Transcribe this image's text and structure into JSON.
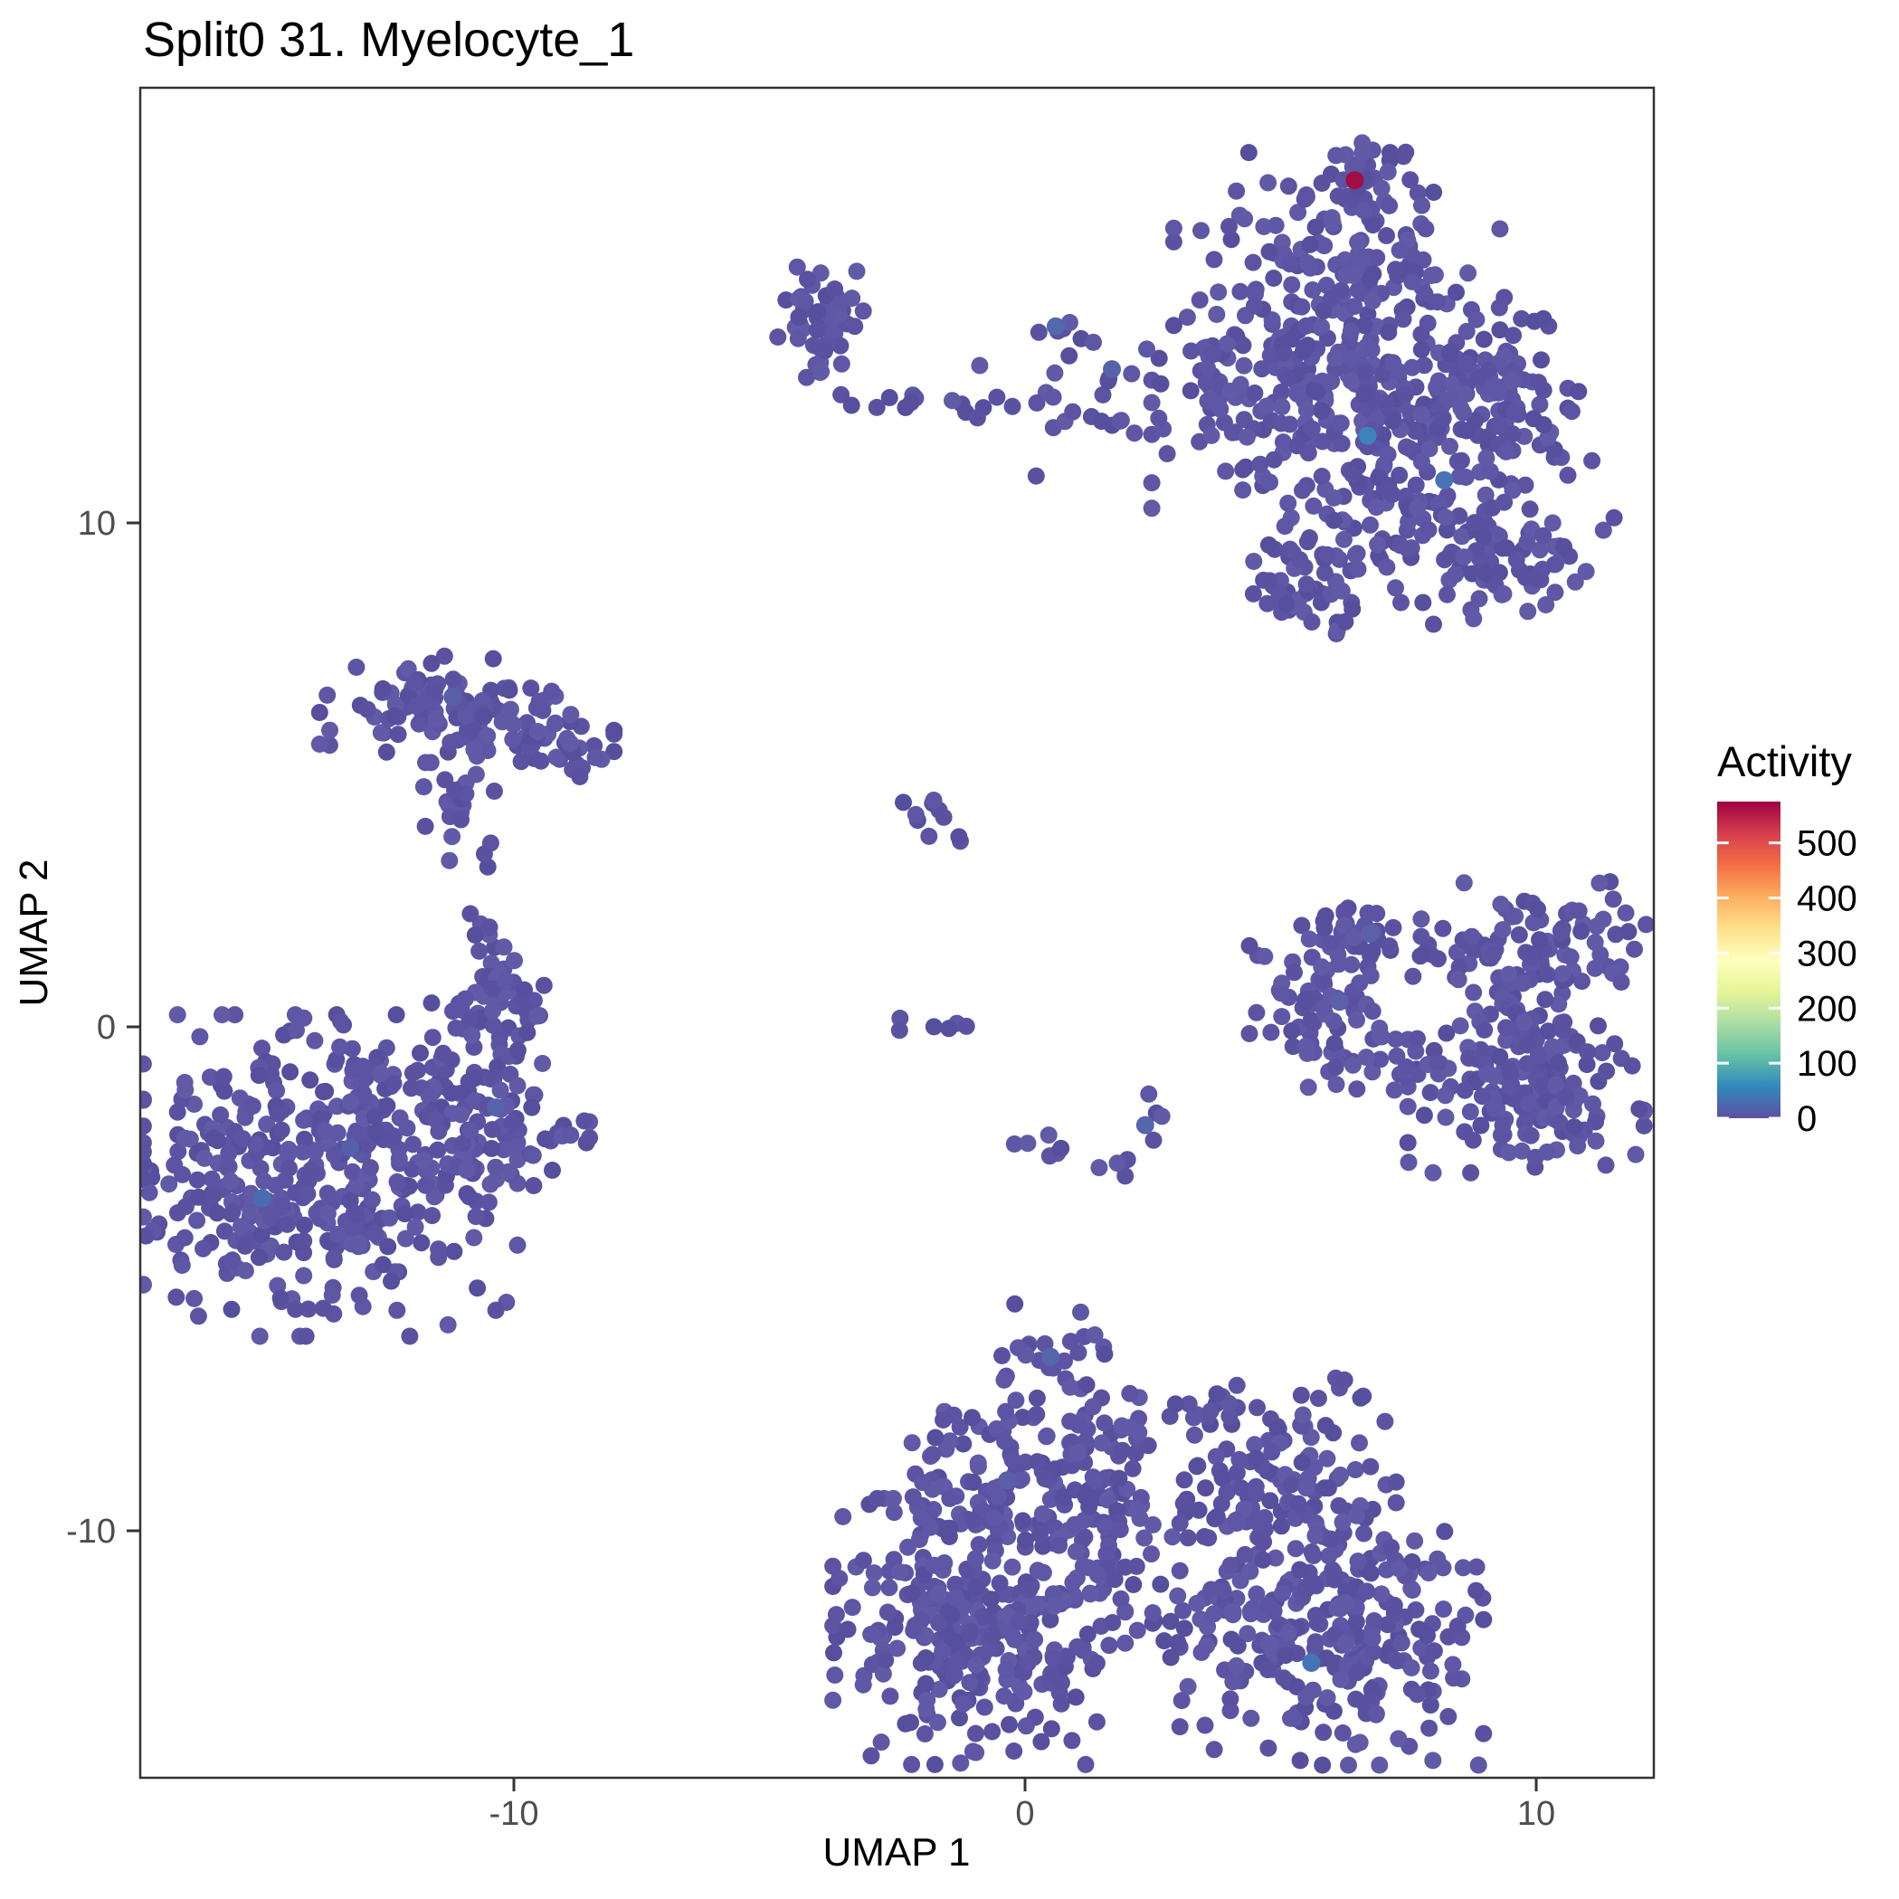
{
  "title": "Split0 31. Myelocyte_1",
  "chart_data": {
    "type": "scatter",
    "title": "Split0 31. Myelocyte_1",
    "xlabel": "UMAP 1",
    "ylabel": "UMAP 2",
    "x_ticks": [
      -10,
      0,
      10
    ],
    "y_ticks": [
      -10,
      0,
      10
    ],
    "xlim": [
      -17.25,
      12.25
    ],
    "ylim": [
      -14.85,
      18.6
    ],
    "grid": false,
    "legend_position": "right",
    "colorbar": {
      "title": "Activity",
      "ticks": [
        0,
        100,
        200,
        300,
        400,
        500
      ],
      "domain": [
        0,
        575
      ],
      "palette_low_to_high": [
        "#5E4FA2",
        "#3288BD",
        "#66C2A5",
        "#ABDDA4",
        "#E6F598",
        "#FFFFBF",
        "#FEE08B",
        "#FDAE61",
        "#F46D43",
        "#D53E4F",
        "#9E0142"
      ]
    },
    "point_radius_px": 9.5,
    "point_colors": [
      "#5C54A3",
      "#5A52A1",
      "#605AA7",
      "#564F9D",
      "#5E57A6"
    ],
    "seed": 42,
    "clusters": [
      {
        "name": "top-right-main",
        "blobs": [
          [
            6.5,
            16.55,
            0.5,
            0.55,
            35
          ],
          [
            6.1,
            14.6,
            1.45,
            1.25,
            160
          ],
          [
            6.55,
            12.6,
            1.85,
            1.05,
            210
          ],
          [
            9.0,
            12.4,
            0.95,
            0.75,
            80
          ],
          [
            6.9,
            10.4,
            1.2,
            0.9,
            110
          ],
          [
            5.5,
            8.9,
            0.7,
            0.5,
            45
          ],
          [
            9.25,
            9.2,
            0.8,
            0.55,
            60
          ],
          [
            10.7,
            9.65,
            0.42,
            0.22,
            6
          ],
          [
            4.6,
            11.7,
            0.5,
            0.6,
            8
          ]
        ]
      },
      {
        "name": "top-left-small",
        "blobs": [
          [
            -4.0,
            14.25,
            0.38,
            0.62,
            48
          ]
        ]
      },
      {
        "name": "top-middle-chain",
        "blobs": [
          [
            -2.65,
            12.45,
            0.7,
            0.12,
            9
          ],
          [
            -0.95,
            12.4,
            0.38,
            0.18,
            5
          ],
          [
            0.45,
            12.55,
            0.7,
            0.3,
            9
          ],
          [
            1.65,
            13.1,
            0.55,
            0.45,
            9
          ],
          [
            0.62,
            13.85,
            0.28,
            0.22,
            4
          ],
          [
            2.2,
            11.95,
            0.4,
            0.22,
            7
          ],
          [
            4.0,
            12.05,
            0.25,
            0.18,
            4
          ],
          [
            3.3,
            13.05,
            0.35,
            0.3,
            5
          ],
          [
            0.18,
            10.9,
            0.05,
            0.05,
            1
          ]
        ]
      },
      {
        "name": "center-small-blob",
        "blobs": [
          [
            -1.72,
            4.3,
            0.3,
            0.28,
            10
          ]
        ]
      },
      {
        "name": "center-chain",
        "blobs": [
          [
            -1.55,
            0.1,
            0.5,
            0.15,
            6
          ]
        ]
      },
      {
        "name": "center-arc",
        "blobs": [
          [
            0.35,
            -2.55,
            0.5,
            0.22,
            6
          ],
          [
            1.7,
            -2.75,
            0.3,
            0.25,
            5
          ],
          [
            2.45,
            -1.95,
            0.3,
            0.28,
            4
          ]
        ]
      },
      {
        "name": "right-ring",
        "blobs": [
          [
            5.6,
            0.45,
            0.55,
            0.75,
            55
          ],
          [
            6.6,
            1.75,
            0.45,
            0.4,
            32
          ],
          [
            8.2,
            1.6,
            0.8,
            0.16,
            12
          ],
          [
            9.95,
            1.45,
            1.0,
            0.65,
            95
          ],
          [
            10.0,
            -0.1,
            0.5,
            0.6,
            40
          ],
          [
            9.8,
            -1.4,
            1.05,
            0.68,
            130
          ],
          [
            7.5,
            -0.7,
            0.9,
            0.3,
            30
          ],
          [
            6.5,
            0.3,
            0.42,
            0.5,
            7
          ]
        ]
      },
      {
        "name": "bottom-x-cluster",
        "blobs": [
          [
            0.5,
            -6.6,
            0.48,
            0.5,
            26
          ],
          [
            -0.4,
            -8.85,
            0.95,
            0.85,
            95
          ],
          [
            -2.05,
            -8.9,
            0.32,
            0.6,
            13
          ],
          [
            1.7,
            -9.15,
            0.55,
            0.95,
            55
          ],
          [
            4.95,
            -8.7,
            1.05,
            0.8,
            95
          ],
          [
            3.1,
            -7.55,
            0.7,
            0.3,
            9
          ],
          [
            2.2,
            -10.1,
            1.6,
            0.28,
            26
          ],
          [
            -0.9,
            -12.0,
            1.3,
            1.2,
            290
          ],
          [
            6.0,
            -11.9,
            1.35,
            1.25,
            290
          ],
          [
            2.4,
            -11.6,
            1.25,
            0.5,
            32
          ]
        ]
      },
      {
        "name": "left-cluster",
        "blobs": [
          [
            -11.6,
            6.3,
            1.0,
            0.48,
            85
          ],
          [
            -9.8,
            5.8,
            0.8,
            0.4,
            60
          ],
          [
            -8.75,
            5.4,
            0.33,
            0.28,
            8
          ],
          [
            -11.1,
            4.4,
            0.4,
            0.5,
            20
          ],
          [
            -10.6,
            3.1,
            0.12,
            0.15,
            2
          ],
          [
            -10.5,
            1.8,
            0.16,
            0.5,
            8
          ],
          [
            -10.4,
            0.45,
            0.55,
            0.62,
            48
          ],
          [
            -11.1,
            -1.0,
            0.9,
            0.38,
            38
          ],
          [
            -14.0,
            -2.95,
            1.85,
            1.45,
            390
          ],
          [
            -10.5,
            -2.4,
            0.9,
            0.52,
            65
          ]
        ]
      }
    ],
    "highlight_points": [
      {
        "x": 6.45,
        "y": 16.8,
        "activity": 560,
        "color": "#A30D45"
      },
      {
        "x": 6.7,
        "y": 11.73,
        "activity": 105,
        "color": "#3E82BB"
      },
      {
        "x": 8.2,
        "y": 10.85,
        "activity": 55,
        "color": "#4973B4"
      },
      {
        "x": 0.6,
        "y": 13.9,
        "activity": 30,
        "color": "#5468AE"
      },
      {
        "x": 1.7,
        "y": 13.05,
        "activity": 25,
        "color": "#5663AA"
      },
      {
        "x": 2.35,
        "y": -1.95,
        "activity": 30,
        "color": "#5566AC"
      },
      {
        "x": 5.6,
        "y": -12.62,
        "activity": 70,
        "color": "#4375B6"
      },
      {
        "x": 0.5,
        "y": -6.55,
        "activity": 25,
        "color": "#5765AB"
      },
      {
        "x": -14.92,
        "y": -3.4,
        "activity": 45,
        "color": "#4A6BB2"
      },
      {
        "x": -13.2,
        "y": -2.4,
        "activity": 20,
        "color": "#5560A8"
      },
      {
        "x": -10.35,
        "y": -1.6,
        "activity": 20,
        "color": "#5663AA"
      },
      {
        "x": 6.15,
        "y": 0.5,
        "activity": 18,
        "color": "#5A61A9"
      },
      {
        "x": 6.75,
        "y": 1.85,
        "activity": 18,
        "color": "#5A61A9"
      },
      {
        "x": -11.2,
        "y": 6.55,
        "activity": 15,
        "color": "#5960A7"
      },
      {
        "x": -0.35,
        "y": -9.0,
        "activity": 15,
        "color": "#5960A7"
      }
    ]
  }
}
